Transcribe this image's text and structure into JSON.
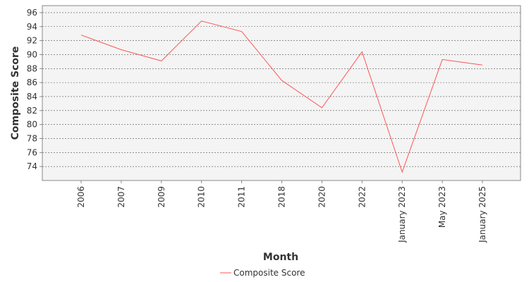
{
  "chart_data": {
    "type": "line",
    "categories": [
      "2006",
      "2007",
      "2009",
      "2010",
      "2011",
      "2018",
      "2020",
      "2022",
      "January 2023",
      "May 2023",
      "January 2025"
    ],
    "series": [
      {
        "name": "Composite Score",
        "color": "#ff5555",
        "values": [
          92.8,
          90.7,
          89.1,
          94.8,
          93.3,
          86.3,
          82.4,
          90.4,
          73.2,
          89.3,
          88.5
        ]
      }
    ],
    "xlabel": "Month",
    "ylabel": "Composite Score",
    "ylim": [
      72.0,
      97.0
    ],
    "yticks": [
      74,
      76,
      78,
      80,
      82,
      84,
      86,
      88,
      90,
      92,
      94,
      96
    ],
    "grid": true,
    "legend_position": "bottom-center"
  }
}
